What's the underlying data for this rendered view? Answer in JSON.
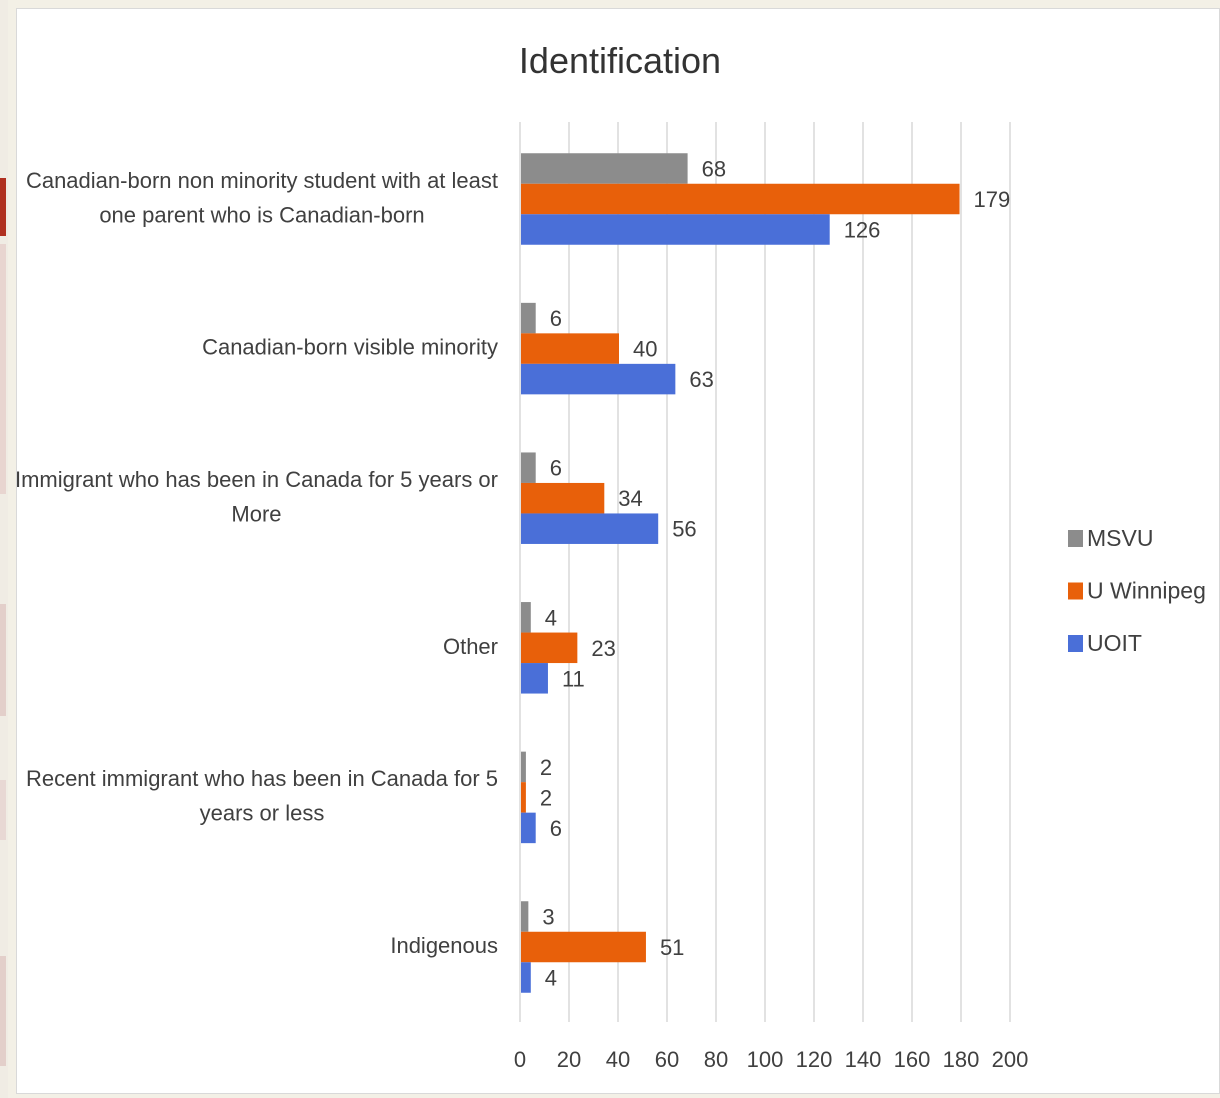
{
  "colors": {
    "page_bg": "#ffffff",
    "grid": "#d9d9d9",
    "text": "#404040",
    "side_accent": "#b03020"
  },
  "chart_data": {
    "type": "bar",
    "orientation": "horizontal",
    "title": "Identification",
    "xlabel": "",
    "ylabel": "",
    "xlim": [
      0,
      200
    ],
    "x_ticks": [
      "0",
      "20",
      "40",
      "60",
      "80",
      "100",
      "120",
      "140",
      "160",
      "180",
      "200"
    ],
    "grid": "vertical",
    "legend_position": "right",
    "categories": [
      [
        "Canadian-born non minority student with at least",
        "one parent who is Canadian-born"
      ],
      [
        "Canadian-born visible minority"
      ],
      [
        "Immigrant who has been in Canada for 5 years or",
        "More"
      ],
      [
        "Other"
      ],
      [
        "Recent immigrant who has been in Canada for 5",
        "years or less"
      ],
      [
        "Indigenous"
      ]
    ],
    "series": [
      {
        "name": "MSVU",
        "color": "#8c8c8c",
        "values": [
          68,
          6,
          6,
          4,
          2,
          3
        ]
      },
      {
        "name": "U Winnipeg",
        "color": "#e8600a",
        "values": [
          179,
          40,
          34,
          23,
          2,
          51
        ]
      },
      {
        "name": "UOIT",
        "color": "#4a6fd8",
        "values": [
          126,
          63,
          56,
          11,
          6,
          4
        ]
      }
    ]
  }
}
